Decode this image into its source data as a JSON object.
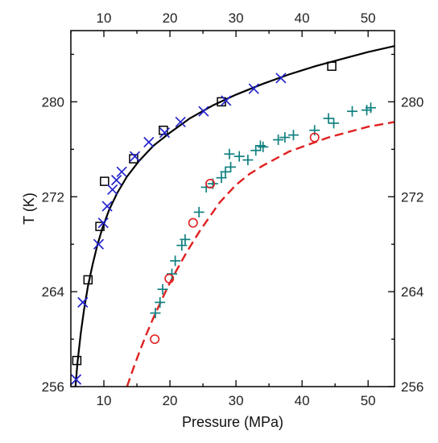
{
  "chart_data": {
    "type": "scatter",
    "title": "",
    "xlabel": "Pressure (MPa)",
    "ylabel": "T (K)",
    "xlim": [
      5,
      54
    ],
    "ylim": [
      256,
      286
    ],
    "x_ticks": [
      10,
      20,
      30,
      40,
      50
    ],
    "y_ticks": [
      256,
      264,
      272,
      280
    ],
    "top_x_ticks": [
      10,
      20,
      30,
      40,
      50
    ],
    "right_y_ticks": [
      256,
      264,
      272,
      280
    ],
    "grid": false,
    "series": [
      {
        "marker": "square",
        "color": "#000000",
        "points": [
          [
            5.9,
            258.2
          ],
          [
            7.6,
            265.0
          ],
          [
            9.4,
            269.5
          ],
          [
            10.1,
            273.3
          ],
          [
            14.5,
            275.2
          ],
          [
            19.0,
            277.6
          ],
          [
            27.8,
            280.0
          ],
          [
            44.5,
            283.0
          ]
        ]
      },
      {
        "marker": "x",
        "color": "#2222cc",
        "points": [
          [
            5.8,
            256.6
          ],
          [
            6.8,
            263.1
          ],
          [
            9.2,
            268.0
          ],
          [
            9.9,
            269.8
          ],
          [
            10.5,
            271.2
          ],
          [
            11.3,
            272.6
          ],
          [
            11.9,
            273.4
          ],
          [
            12.7,
            274.1
          ],
          [
            14.7,
            275.4
          ],
          [
            16.8,
            276.6
          ],
          [
            19.2,
            277.4
          ],
          [
            21.6,
            278.3
          ],
          [
            25.1,
            279.2
          ],
          [
            28.5,
            280.1
          ],
          [
            32.7,
            281.1
          ],
          [
            36.8,
            282.0
          ]
        ]
      },
      {
        "marker": "plus",
        "color": "#108080",
        "points": [
          [
            17.8,
            262.2
          ],
          [
            18.5,
            263.1
          ],
          [
            18.9,
            264.2
          ],
          [
            20.3,
            265.5
          ],
          [
            20.8,
            266.6
          ],
          [
            21.8,
            267.9
          ],
          [
            22.3,
            268.4
          ],
          [
            24.4,
            270.7
          ],
          [
            25.5,
            272.8
          ],
          [
            26.5,
            273.1
          ],
          [
            27.8,
            273.6
          ],
          [
            28.4,
            274.1
          ],
          [
            29.2,
            274.5
          ],
          [
            29.0,
            275.6
          ],
          [
            30.5,
            275.4
          ],
          [
            31.8,
            275.1
          ],
          [
            33.0,
            275.9
          ],
          [
            33.7,
            276.3
          ],
          [
            34.1,
            276.2
          ],
          [
            36.4,
            276.8
          ],
          [
            37.4,
            277.0
          ],
          [
            38.7,
            277.2
          ],
          [
            41.9,
            277.6
          ],
          [
            44.0,
            278.6
          ],
          [
            44.8,
            278.2
          ],
          [
            47.6,
            279.2
          ],
          [
            49.8,
            279.3
          ],
          [
            50.4,
            279.5
          ]
        ]
      },
      {
        "marker": "circle",
        "color": "#e02020",
        "points": [
          [
            17.7,
            260.0
          ],
          [
            19.9,
            265.1
          ],
          [
            23.5,
            269.8
          ],
          [
            26.1,
            273.1
          ],
          [
            41.9,
            277.0
          ]
        ]
      },
      {
        "type": "line",
        "style": "solid",
        "color": "#000000",
        "points": [
          [
            5.7,
            256.0
          ],
          [
            6.0,
            258.0
          ],
          [
            6.5,
            260.5
          ],
          [
            7.0,
            262.5
          ],
          [
            7.6,
            264.5
          ],
          [
            8.3,
            266.3
          ],
          [
            9.0,
            267.9
          ],
          [
            9.8,
            269.4
          ],
          [
            10.8,
            270.9
          ],
          [
            12.0,
            272.3
          ],
          [
            13.5,
            273.7
          ],
          [
            15.3,
            275.0
          ],
          [
            17.5,
            276.3
          ],
          [
            20.0,
            277.4
          ],
          [
            23.0,
            278.6
          ],
          [
            26.5,
            279.7
          ],
          [
            30.0,
            280.6
          ],
          [
            34.0,
            281.5
          ],
          [
            38.0,
            282.3
          ],
          [
            42.0,
            283.0
          ],
          [
            46.0,
            283.6
          ],
          [
            50.0,
            284.2
          ],
          [
            54.0,
            284.7
          ]
        ]
      },
      {
        "type": "line",
        "style": "dashed",
        "color": "#e02020",
        "points": [
          [
            13.5,
            256.0
          ],
          [
            14.5,
            257.6
          ],
          [
            15.5,
            259.1
          ],
          [
            16.5,
            260.5
          ],
          [
            17.5,
            261.8
          ],
          [
            18.5,
            263.0
          ],
          [
            19.5,
            264.2
          ],
          [
            20.5,
            265.3
          ],
          [
            21.5,
            266.3
          ],
          [
            22.5,
            267.3
          ],
          [
            23.5,
            268.2
          ],
          [
            24.5,
            269.1
          ],
          [
            25.5,
            269.9
          ],
          [
            26.5,
            270.7
          ],
          [
            27.5,
            271.5
          ],
          [
            28.5,
            272.1
          ],
          [
            30.0,
            273.0
          ],
          [
            32.0,
            273.9
          ],
          [
            34.0,
            274.6
          ],
          [
            36.0,
            275.2
          ],
          [
            38.0,
            275.8
          ],
          [
            40.0,
            276.2
          ],
          [
            42.0,
            276.6
          ],
          [
            44.0,
            277.0
          ],
          [
            46.0,
            277.3
          ],
          [
            48.0,
            277.6
          ],
          [
            50.0,
            277.9
          ],
          [
            52.0,
            278.1
          ],
          [
            54.0,
            278.3
          ]
        ]
      }
    ]
  }
}
